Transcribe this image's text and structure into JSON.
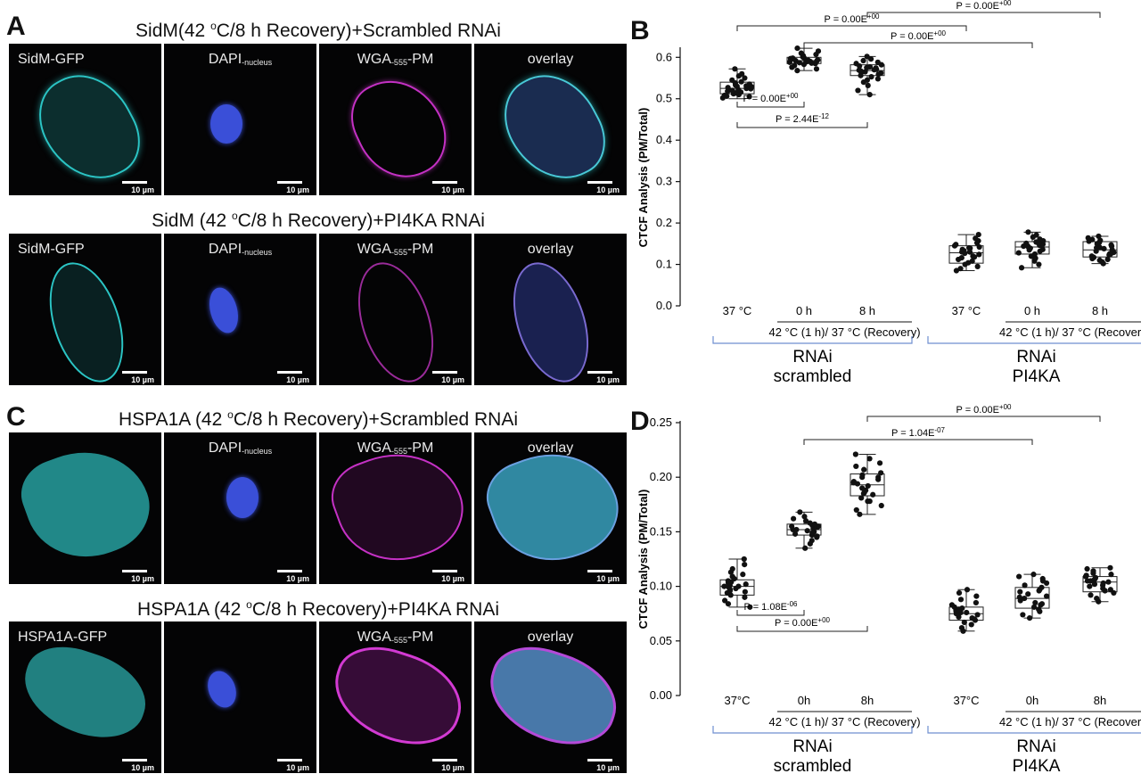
{
  "panels": {
    "a": "A",
    "b": "B",
    "c": "C",
    "d": "D"
  },
  "row_titles": {
    "a1": {
      "prefix": "SidM(42 ",
      "sup": "o",
      "suffix": "C/8 h Recovery)+Scrambled RNAi"
    },
    "a2": {
      "prefix": "SidM (42 ",
      "sup": "o",
      "suffix": "C/8 h Recovery)+PI4KA RNAi"
    },
    "c1": {
      "prefix": "HSPA1A (42 ",
      "sup": "o",
      "suffix": "C/8 h Recovery)+Scrambled RNAi"
    },
    "c2": {
      "prefix": "HSPA1A (42 ",
      "sup": "o",
      "suffix": "C/8 h Recovery)+PI4KA RNAi"
    }
  },
  "channel_labels": {
    "sidm_gfp": "SidM-GFP",
    "dapi": "DAPI",
    "dapi_sub": "-nucleus",
    "wga": "WGA",
    "wga_sub": "-555",
    "wga_suffix": "-PM",
    "overlay": "overlay",
    "hspa1a_gfp": "HSPA1A-GFP"
  },
  "scale_bar_label": "10 µm",
  "colors": {
    "cyan": "#2bc4c4",
    "blue": "#3a4fd8",
    "magenta": "#c431c4",
    "axis": "#111111",
    "bracket": "#6f8fd0"
  },
  "chart_data": [
    {
      "type": "box",
      "id": "B",
      "ylabel": "CTCF Analysis (PM/Total)",
      "ylim": [
        0,
        0.62
      ],
      "yticks": [
        "0.0",
        "0.1",
        "0.2",
        "0.3",
        "0.4",
        "0.5",
        "0.6"
      ],
      "ytick_values": [
        0,
        0.1,
        0.2,
        0.3,
        0.4,
        0.5,
        0.6
      ],
      "categories": [
        "37 °C",
        "0 h",
        "8 h",
        "37 °C",
        "0 h",
        "8 h"
      ],
      "boxes": [
        {
          "min": 0.5,
          "q1": 0.512,
          "median": 0.525,
          "q3": 0.54,
          "max": 0.572,
          "points": [
            0.502,
            0.505,
            0.508,
            0.51,
            0.512,
            0.514,
            0.516,
            0.518,
            0.52,
            0.522,
            0.524,
            0.525,
            0.527,
            0.529,
            0.531,
            0.533,
            0.535,
            0.538,
            0.541,
            0.545,
            0.55,
            0.555,
            0.56,
            0.572,
            0.506,
            0.52,
            0.53
          ]
        },
        {
          "min": 0.568,
          "q1": 0.585,
          "median": 0.592,
          "q3": 0.6,
          "max": 0.622,
          "points": [
            0.568,
            0.572,
            0.576,
            0.58,
            0.583,
            0.585,
            0.587,
            0.589,
            0.59,
            0.591,
            0.592,
            0.593,
            0.595,
            0.597,
            0.599,
            0.601,
            0.604,
            0.607,
            0.61,
            0.615,
            0.622,
            0.586,
            0.594,
            0.598,
            0.588
          ]
        },
        {
          "min": 0.51,
          "q1": 0.556,
          "median": 0.568,
          "q3": 0.582,
          "max": 0.602,
          "points": [
            0.51,
            0.52,
            0.532,
            0.54,
            0.548,
            0.553,
            0.556,
            0.559,
            0.562,
            0.565,
            0.567,
            0.569,
            0.571,
            0.574,
            0.577,
            0.579,
            0.582,
            0.585,
            0.588,
            0.592,
            0.596,
            0.602,
            0.563,
            0.57,
            0.575,
            0.545
          ]
        },
        {
          "min": 0.085,
          "q1": 0.103,
          "median": 0.128,
          "q3": 0.145,
          "max": 0.172,
          "points": [
            0.085,
            0.09,
            0.095,
            0.1,
            0.104,
            0.108,
            0.112,
            0.116,
            0.12,
            0.124,
            0.127,
            0.13,
            0.133,
            0.136,
            0.139,
            0.142,
            0.145,
            0.148,
            0.152,
            0.157,
            0.163,
            0.172,
            0.118,
            0.13,
            0.14
          ]
        },
        {
          "min": 0.092,
          "q1": 0.125,
          "median": 0.142,
          "q3": 0.155,
          "max": 0.178,
          "points": [
            0.092,
            0.1,
            0.108,
            0.115,
            0.12,
            0.125,
            0.128,
            0.132,
            0.136,
            0.139,
            0.142,
            0.144,
            0.146,
            0.149,
            0.151,
            0.154,
            0.157,
            0.161,
            0.166,
            0.171,
            0.178,
            0.135,
            0.145,
            0.15
          ]
        },
        {
          "min": 0.102,
          "q1": 0.118,
          "median": 0.135,
          "q3": 0.155,
          "max": 0.168,
          "points": [
            0.102,
            0.106,
            0.11,
            0.114,
            0.117,
            0.12,
            0.123,
            0.126,
            0.129,
            0.132,
            0.135,
            0.138,
            0.141,
            0.144,
            0.147,
            0.15,
            0.153,
            0.156,
            0.16,
            0.164,
            0.168,
            0.125,
            0.14,
            0.158,
            0.112
          ]
        }
      ],
      "group_label": "42 °C (1 h)/ 37 °C (Recovery)",
      "groups": [
        {
          "line1": "RNAi",
          "line2": "scrambled"
        },
        {
          "line1": "RNAi",
          "line2": "PI4KA"
        }
      ],
      "annotations": [
        {
          "text": "P = 0.00E",
          "sup": "+00",
          "from": 1,
          "to": 4,
          "pos": "top"
        },
        {
          "text": "P = 0.00E",
          "sup": "+00",
          "from": 0,
          "to": 3,
          "pos": "top"
        },
        {
          "text": "P = 0.00E",
          "sup": "+00",
          "from": 2,
          "to": 5,
          "pos": "top"
        },
        {
          "text": "P = 0.00E",
          "sup": "+00",
          "from": 0,
          "to": 1,
          "pos": "bottom"
        },
        {
          "text": "P = 2.44E",
          "sup": "-12",
          "from": 0,
          "to": 2,
          "pos": "bottom"
        }
      ]
    },
    {
      "type": "box",
      "id": "D",
      "ylabel": "CTCF Analysis (PM/Total)",
      "ylim": [
        0,
        0.25
      ],
      "yticks": [
        "0.00",
        "0.05",
        "0.10",
        "0.15",
        "0.20",
        "0.25"
      ],
      "ytick_values": [
        0,
        0.05,
        0.1,
        0.15,
        0.2,
        0.25
      ],
      "categories": [
        "37°C",
        "0h",
        "8h",
        "37°C",
        "0h",
        "8h"
      ],
      "boxes": [
        {
          "min": 0.081,
          "q1": 0.092,
          "median": 0.1,
          "q3": 0.106,
          "max": 0.125,
          "points": [
            0.081,
            0.084,
            0.087,
            0.09,
            0.092,
            0.094,
            0.096,
            0.098,
            0.099,
            0.1,
            0.101,
            0.102,
            0.103,
            0.104,
            0.105,
            0.107,
            0.109,
            0.111,
            0.113,
            0.116,
            0.12,
            0.125,
            0.095,
            0.1,
            0.097
          ]
        },
        {
          "min": 0.135,
          "q1": 0.147,
          "median": 0.152,
          "q3": 0.157,
          "max": 0.168,
          "points": [
            0.135,
            0.139,
            0.142,
            0.145,
            0.147,
            0.148,
            0.149,
            0.15,
            0.151,
            0.152,
            0.153,
            0.154,
            0.155,
            0.156,
            0.157,
            0.158,
            0.16,
            0.162,
            0.164,
            0.168,
            0.146,
            0.152,
            0.155
          ]
        },
        {
          "min": 0.166,
          "q1": 0.183,
          "median": 0.193,
          "q3": 0.203,
          "max": 0.221,
          "points": [
            0.166,
            0.17,
            0.174,
            0.178,
            0.181,
            0.184,
            0.186,
            0.188,
            0.19,
            0.192,
            0.194,
            0.196,
            0.198,
            0.2,
            0.202,
            0.204,
            0.207,
            0.21,
            0.213,
            0.217,
            0.221,
            0.185,
            0.195,
            0.2,
            0.178
          ]
        },
        {
          "min": 0.059,
          "q1": 0.069,
          "median": 0.075,
          "q3": 0.081,
          "max": 0.097,
          "points": [
            0.059,
            0.062,
            0.065,
            0.067,
            0.069,
            0.071,
            0.072,
            0.074,
            0.075,
            0.076,
            0.077,
            0.078,
            0.08,
            0.081,
            0.083,
            0.085,
            0.088,
            0.091,
            0.094,
            0.097,
            0.07,
            0.076,
            0.079
          ]
        },
        {
          "min": 0.071,
          "q1": 0.08,
          "median": 0.089,
          "q3": 0.099,
          "max": 0.111,
          "points": [
            0.071,
            0.074,
            0.077,
            0.079,
            0.081,
            0.083,
            0.085,
            0.087,
            0.089,
            0.091,
            0.093,
            0.095,
            0.097,
            0.099,
            0.101,
            0.103,
            0.105,
            0.107,
            0.109,
            0.111,
            0.084,
            0.09,
            0.096
          ]
        },
        {
          "min": 0.086,
          "q1": 0.095,
          "median": 0.104,
          "q3": 0.109,
          "max": 0.117,
          "points": [
            0.086,
            0.089,
            0.092,
            0.094,
            0.096,
            0.098,
            0.1,
            0.101,
            0.102,
            0.103,
            0.104,
            0.105,
            0.106,
            0.107,
            0.108,
            0.109,
            0.11,
            0.111,
            0.112,
            0.114,
            0.116,
            0.117,
            0.097,
            0.105
          ]
        }
      ],
      "group_label": "42 °C (1 h)/ 37 °C (Recovery)",
      "groups": [
        {
          "line1": "RNAi",
          "line2": "scrambled"
        },
        {
          "line1": "RNAi",
          "line2": "PI4KA"
        }
      ],
      "annotations": [
        {
          "text": "P = 0.00E",
          "sup": "+00",
          "from": 2,
          "to": 5,
          "pos": "top"
        },
        {
          "text": "P = 1.04E",
          "sup": "-07",
          "from": 1,
          "to": 4,
          "pos": "top"
        },
        {
          "text": "P = 1.08E",
          "sup": "-06",
          "from": 0,
          "to": 1,
          "pos": "bottom"
        },
        {
          "text": "P = 0.00E",
          "sup": "+00",
          "from": 0,
          "to": 2,
          "pos": "bottom"
        }
      ]
    }
  ]
}
